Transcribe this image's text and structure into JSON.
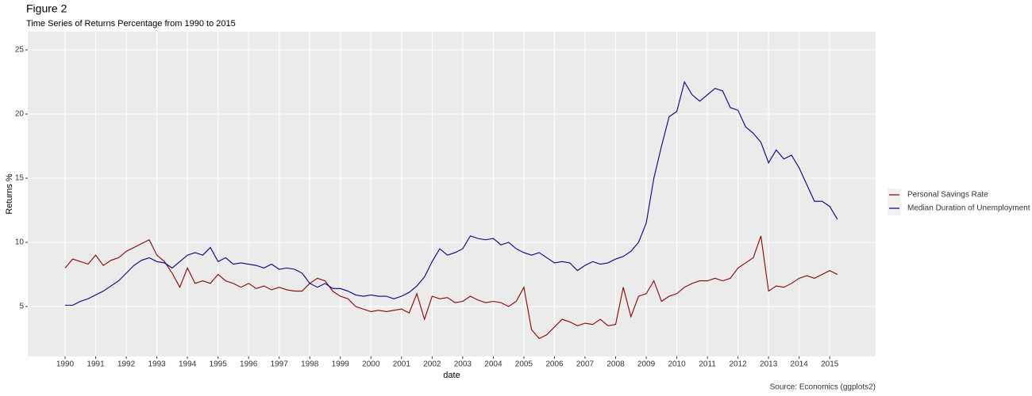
{
  "chart_data": {
    "type": "line",
    "title": "Figure 2",
    "subtitle": "Time Series of Returns Percentage from 1990 to 2015",
    "x_label": "date",
    "y_label": "Returns %",
    "caption": "Source: Economics (ggplots2)",
    "x": [
      1990,
      1990.25,
      1990.5,
      1990.75,
      1991,
      1991.25,
      1991.5,
      1991.75,
      1992,
      1992.25,
      1992.5,
      1992.75,
      1993,
      1993.25,
      1993.5,
      1993.75,
      1994,
      1994.25,
      1994.5,
      1994.75,
      1995,
      1995.25,
      1995.5,
      1995.75,
      1996,
      1996.25,
      1996.5,
      1996.75,
      1997,
      1997.25,
      1997.5,
      1997.75,
      1998,
      1998.25,
      1998.5,
      1998.75,
      1999,
      1999.25,
      1999.5,
      1999.75,
      2000,
      2000.25,
      2000.5,
      2000.75,
      2001,
      2001.25,
      2001.5,
      2001.75,
      2002,
      2002.25,
      2002.5,
      2002.75,
      2003,
      2003.25,
      2003.5,
      2003.75,
      2004,
      2004.25,
      2004.5,
      2004.75,
      2005,
      2005.25,
      2005.5,
      2005.75,
      2006,
      2006.25,
      2006.5,
      2006.75,
      2007,
      2007.25,
      2007.5,
      2007.75,
      2008,
      2008.25,
      2008.5,
      2008.75,
      2009,
      2009.25,
      2009.5,
      2009.75,
      2010,
      2010.25,
      2010.5,
      2010.75,
      2011,
      2011.25,
      2011.5,
      2011.75,
      2012,
      2012.25,
      2012.5,
      2012.75,
      2013,
      2013.25,
      2013.5,
      2013.75,
      2014,
      2014.25,
      2014.5,
      2014.75,
      2015,
      2015.25
    ],
    "series": [
      {
        "name": "Personal Savings Rate",
        "color": "#8b0000",
        "values": [
          8.0,
          8.7,
          8.5,
          8.3,
          9.0,
          8.2,
          8.6,
          8.8,
          9.3,
          9.6,
          9.9,
          10.2,
          9.0,
          8.5,
          7.6,
          6.5,
          8.0,
          6.8,
          7.0,
          6.8,
          7.5,
          7.0,
          6.8,
          6.5,
          6.8,
          6.4,
          6.6,
          6.3,
          6.5,
          6.3,
          6.2,
          6.2,
          6.8,
          7.2,
          7.0,
          6.2,
          5.8,
          5.6,
          5.0,
          4.8,
          4.6,
          4.7,
          4.6,
          4.7,
          4.8,
          4.5,
          6.0,
          4.0,
          5.8,
          5.6,
          5.7,
          5.3,
          5.4,
          5.8,
          5.5,
          5.3,
          5.4,
          5.3,
          5.0,
          5.4,
          6.5,
          3.2,
          2.5,
          2.8,
          3.4,
          4.0,
          3.8,
          3.5,
          3.7,
          3.6,
          4.0,
          3.5,
          3.6,
          6.5,
          4.2,
          5.8,
          6.0,
          7.0,
          5.4,
          5.8,
          6.0,
          6.5,
          6.8,
          7.0,
          7.0,
          7.2,
          7.0,
          7.2,
          8.0,
          8.4,
          8.8,
          10.5,
          6.2,
          6.6,
          6.5,
          6.8,
          7.2,
          7.4,
          7.2,
          7.5,
          7.8,
          7.5
        ]
      },
      {
        "name": "Median Duration of Unemployment",
        "color": "#00008b",
        "values": [
          5.1,
          5.1,
          5.4,
          5.6,
          5.9,
          6.2,
          6.6,
          7.0,
          7.6,
          8.2,
          8.6,
          8.8,
          8.5,
          8.4,
          8.0,
          8.5,
          9.0,
          9.2,
          9.0,
          9.6,
          8.5,
          8.8,
          8.3,
          8.4,
          8.3,
          8.2,
          8.0,
          8.3,
          7.9,
          8.0,
          7.9,
          7.6,
          6.8,
          6.5,
          6.8,
          6.4,
          6.4,
          6.2,
          5.9,
          5.8,
          5.9,
          5.8,
          5.8,
          5.6,
          5.8,
          6.1,
          6.6,
          7.3,
          8.5,
          9.5,
          9.0,
          9.2,
          9.5,
          10.5,
          10.3,
          10.2,
          10.3,
          9.8,
          10.0,
          9.5,
          9.2,
          9.0,
          9.2,
          8.8,
          8.4,
          8.5,
          8.4,
          7.8,
          8.2,
          8.5,
          8.3,
          8.4,
          8.7,
          8.9,
          9.3,
          10.0,
          11.5,
          15.0,
          17.5,
          19.8,
          20.2,
          22.5,
          21.5,
          21.0,
          21.5,
          22.0,
          21.8,
          20.5,
          20.3,
          19.0,
          18.5,
          17.8,
          16.2,
          17.2,
          16.5,
          16.8,
          15.8,
          14.5,
          13.2,
          13.2,
          12.8,
          11.8
        ]
      }
    ],
    "xlim": [
      1988.78,
      2016.5
    ],
    "xticks": [
      1990,
      1991,
      1992,
      1993,
      1994,
      1995,
      1996,
      1997,
      1998,
      1999,
      2000,
      2001,
      2002,
      2003,
      2004,
      2005,
      2006,
      2007,
      2008,
      2009,
      2010,
      2011,
      2012,
      2013,
      2014,
      2015
    ],
    "ylim": [
      1.11,
      26.42
    ],
    "yticks": [
      5,
      10,
      15,
      20,
      25
    ],
    "grid": true,
    "legend": "right"
  }
}
